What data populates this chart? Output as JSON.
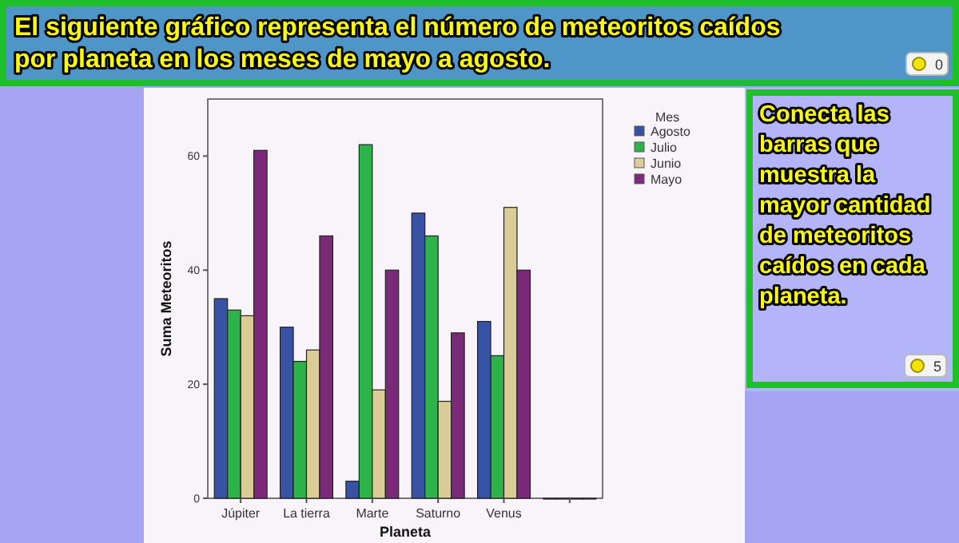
{
  "chart_data": {
    "type": "bar",
    "title": "El siguiente gráfico representa el número de meteoritos caídos por planeta en los meses de mayo a agosto.",
    "xlabel": "Planeta",
    "ylabel": "Suma Meteoritos",
    "legend_title": "Mes",
    "categories": [
      "Júpiter",
      "La tierra",
      "Marte",
      "Saturno",
      "Venus",
      null
    ],
    "series": [
      {
        "name": "Agosto",
        "color": "#3953a4",
        "values": [
          35,
          30,
          3,
          50,
          31,
          0
        ]
      },
      {
        "name": "Julio",
        "color": "#2db34a",
        "values": [
          33,
          24,
          62,
          46,
          25,
          0
        ]
      },
      {
        "name": "Junio",
        "color": "#d9cc96",
        "values": [
          32,
          26,
          19,
          17,
          51,
          0
        ]
      },
      {
        "name": "Mayo",
        "color": "#7b2a7a",
        "values": [
          61,
          46,
          40,
          29,
          40,
          0
        ]
      }
    ],
    "ylim": [
      0,
      70
    ],
    "yticks": [
      0,
      20,
      40,
      60
    ],
    "grid": false,
    "legend": "top right",
    "annotations": [
      "Conecta las barras que muestra la mayor cantidad de meteoritos caídos en cada planeta.",
      "0",
      "5"
    ]
  }
}
